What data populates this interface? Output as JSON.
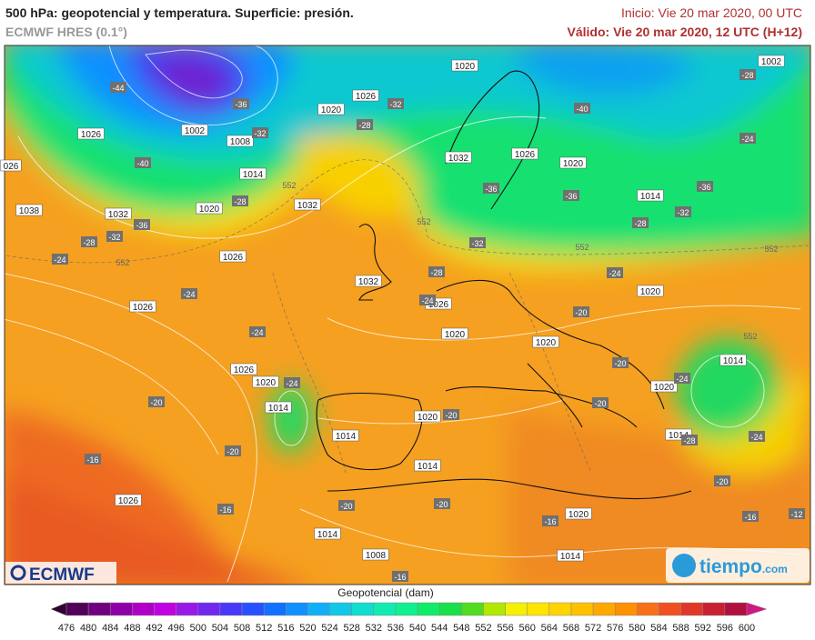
{
  "header": {
    "title": "500 hPa: geopotencial y temperatura. Superficie: presión.",
    "model": "ECMWF HRES (0.1°)",
    "start": "Inicio: Vie 20 mar 2020, 00 UTC",
    "valid": "Válido: Vie 20 mar 2020, 12 UTC (H+12)"
  },
  "map": {
    "pressure_labels": [
      "1020",
      "1002",
      "1026",
      "1020",
      "1026",
      "1002",
      "1008",
      "1014",
      "1032",
      "1026",
      "1020",
      "1014",
      "1038",
      "1032",
      "1020",
      "1032",
      "1026",
      "1032",
      "1026",
      "1026",
      "1020",
      "1020",
      "1020",
      "1026",
      "1020",
      "1014",
      "1014",
      "1020",
      "1020",
      "1014",
      "1014",
      "1014",
      "1026",
      "1020",
      "1014",
      "1008",
      "1014",
      "026"
    ],
    "temperature_labels": [
      "-44",
      "-36",
      "-32",
      "-28",
      "-32",
      "-40",
      "-28",
      "-36",
      "-32",
      "-28",
      "-24",
      "-24",
      "-40",
      "-28",
      "-24",
      "-36",
      "-36",
      "-36",
      "-32",
      "-28",
      "-32",
      "-28",
      "-24",
      "-24",
      "-24",
      "-24",
      "-20",
      "-20",
      "-24",
      "-20",
      "-20",
      "-20",
      "-20",
      "-28",
      "-24",
      "-16",
      "-20",
      "-20",
      "-20",
      "-16",
      "-16",
      "-16",
      "-12",
      "-16"
    ],
    "contour_labels": [
      "552",
      "552",
      "552",
      "552",
      "552",
      "552"
    ]
  },
  "legend": {
    "title": "Geopotencial (dam)",
    "ticks": [
      "476",
      "480",
      "484",
      "488",
      "492",
      "496",
      "500",
      "504",
      "508",
      "512",
      "516",
      "520",
      "524",
      "528",
      "532",
      "536",
      "540",
      "544",
      "548",
      "552",
      "556",
      "560",
      "564",
      "568",
      "572",
      "576",
      "580",
      "584",
      "588",
      "592",
      "596",
      "600"
    ]
  },
  "logos": {
    "ecmwf": "ECMWF",
    "tiempo": "tiempo",
    "tiempo_suffix": ".com"
  }
}
